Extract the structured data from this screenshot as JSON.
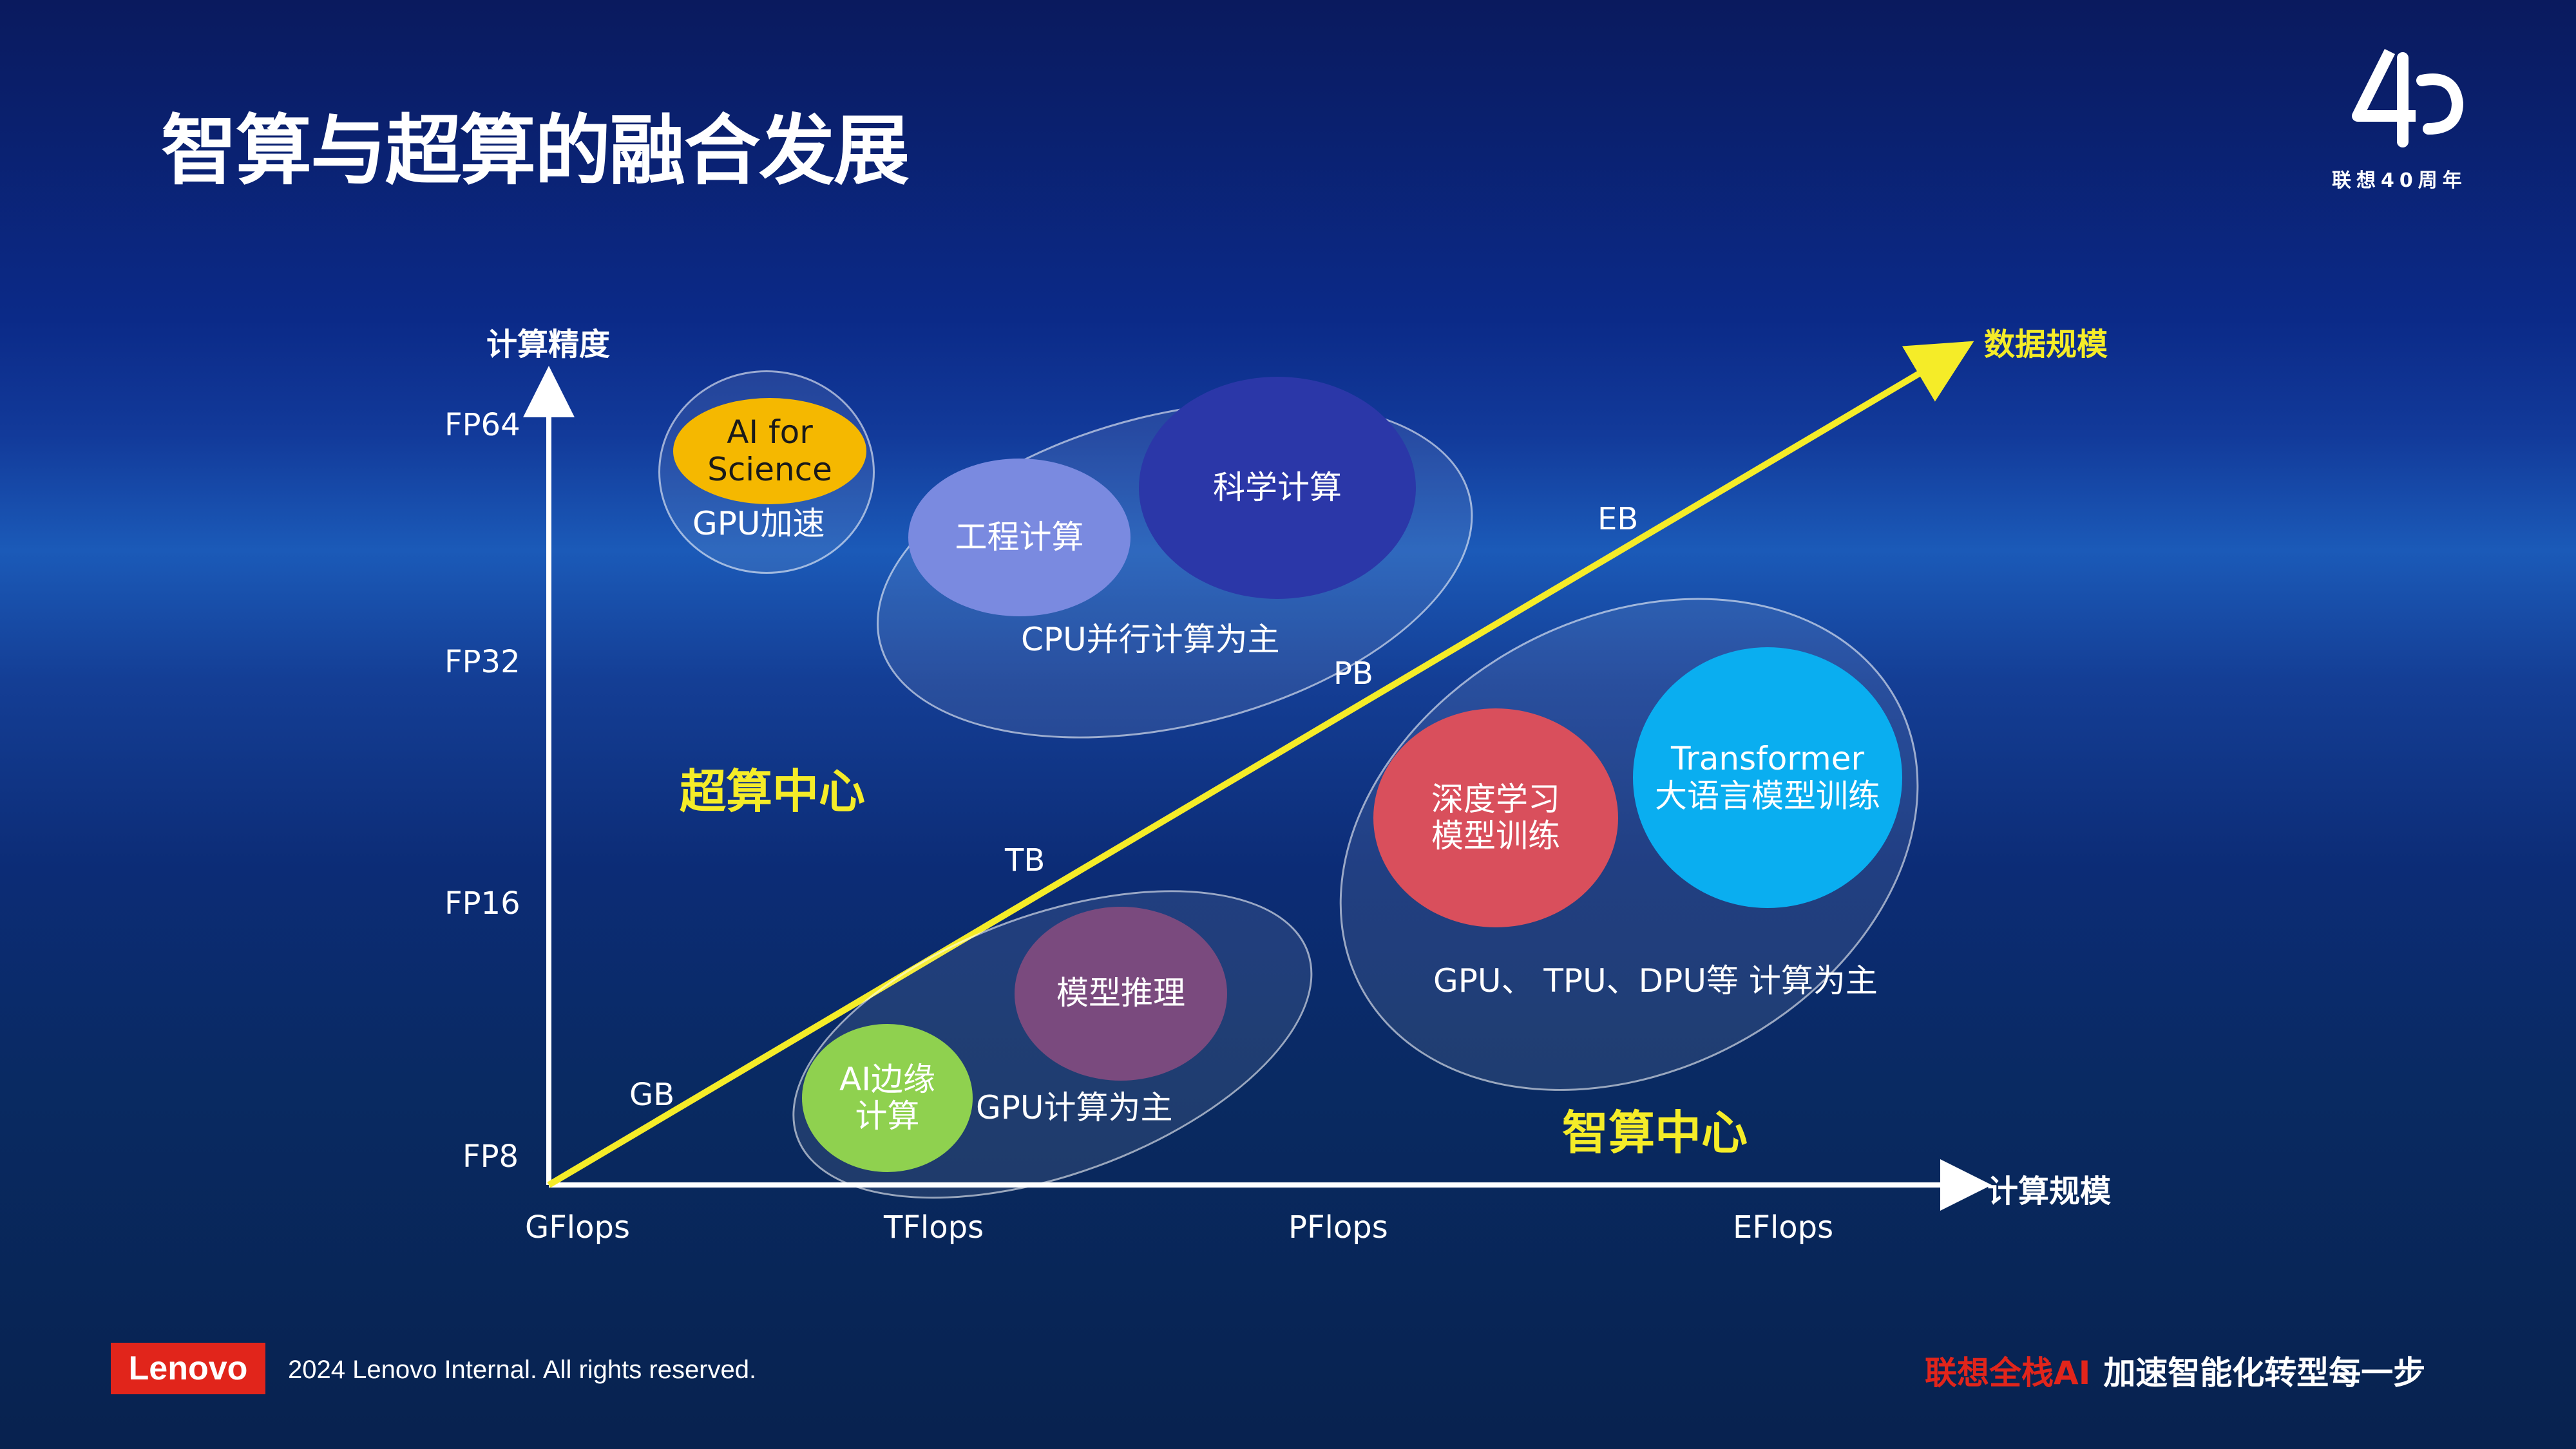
{
  "title": "智算与超算的融合发展",
  "logo": {
    "mark": "4P",
    "text": "联想40周年"
  },
  "axes": {
    "y_title": "计算精度",
    "x_title": "计算规模",
    "diagonal_title": "数据规模",
    "y_ticks": [
      "FP64",
      "FP32",
      "FP16",
      "FP8"
    ],
    "x_ticks": [
      "GFlops",
      "TFlops",
      "PFlops",
      "EFlops"
    ],
    "diagonal_ticks": [
      "GB",
      "TB",
      "PB",
      "EB"
    ]
  },
  "regions": {
    "supercomputing": "超算中心",
    "intelligent": "智算中心"
  },
  "groups": {
    "gpu_accel": {
      "label": "GPU加速",
      "bubbles": [
        {
          "text": "AI for\nScience",
          "color": "#f5b800"
        }
      ]
    },
    "cpu_parallel": {
      "label": "CPU并行计算为主",
      "bubbles": [
        {
          "text": "工程计算",
          "color": "#7a8ae0"
        },
        {
          "text": "科学计算",
          "color": "#2b37a8"
        }
      ]
    },
    "gpu_compute": {
      "label": "GPU计算为主",
      "bubbles": [
        {
          "text": "AI边缘\n计算",
          "color": "#8fd14f"
        },
        {
          "text": "模型推理",
          "color": "#7a4a7e"
        }
      ]
    },
    "multi_chip": {
      "label": "GPU、 TPU、DPU等\n计算为主",
      "bubbles": [
        {
          "text": "深度学习\n模型训练",
          "color": "#d94f5c"
        },
        {
          "text": "Transformer\n大语言模型训练",
          "color": "#0aaef0"
        }
      ]
    }
  },
  "colors": {
    "diagonal": "#f5ec28",
    "region_text": "#f5ec28",
    "axis": "#ffffff"
  },
  "footer": {
    "logo_text": "Lenovo",
    "copyright": "2024 Lenovo Internal. All rights reserved.",
    "slogan_red": "联想全栈AI",
    "slogan_white": "加速智能化转型每一步"
  }
}
